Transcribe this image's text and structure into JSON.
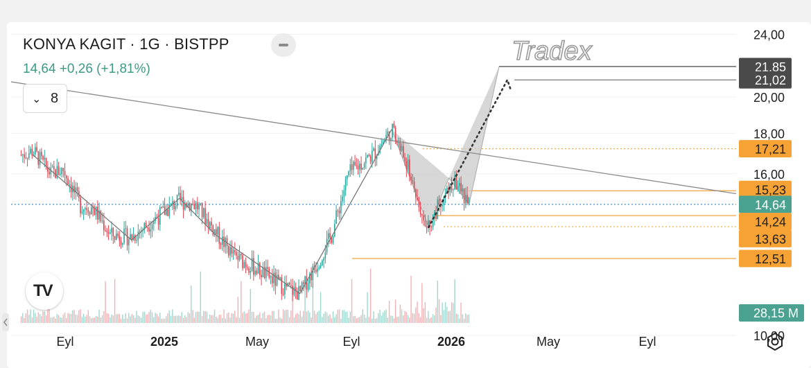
{
  "header": {
    "title": "KONYA KAGIT · 1G · BISTPP",
    "price_line": "14,64 +0,26 (+1,81%)",
    "indicator_count": "8"
  },
  "watermark": "Tradex",
  "icons": [
    "chevron-down-icon",
    "menu-icon",
    "tradingview-logo",
    "settings-icon",
    "collapse-arrow-icon"
  ],
  "colors": {
    "up": "#26a69a",
    "down": "#e0434f",
    "orange_label": "#f7a234",
    "dark_label": "#4a4a4a",
    "volume_label": "#4ca291",
    "trendline": "#8a8a8a"
  },
  "chart_data": {
    "type": "candlestick",
    "symbol": "KONYA KAGIT",
    "interval": "1G",
    "exchange": "BISTPP",
    "last_price": 14.64,
    "change": 0.26,
    "change_pct": 1.81,
    "y_scale": "log",
    "y_tick_labels": [
      "24,00",
      "20,00",
      "18,00",
      "16,00",
      "10,00"
    ],
    "y_ticks": [
      24,
      20,
      18,
      16,
      10
    ],
    "x_tick_labels": [
      "Eyl",
      "2025",
      "May",
      "Eyl",
      "2026",
      "May",
      "Eyl"
    ],
    "price_path": [
      [
        "2024-08-01",
        16.9
      ],
      [
        "2024-08-15",
        17.1
      ],
      [
        "2024-09-05",
        16.0
      ],
      [
        "2024-09-20",
        16.2
      ],
      [
        "2024-10-10",
        14.6
      ],
      [
        "2024-10-25",
        14.5
      ],
      [
        "2024-11-15",
        13.4
      ],
      [
        "2024-12-10",
        13.3
      ],
      [
        "2025-01-05",
        14.0
      ],
      [
        "2025-02-05",
        14.8
      ],
      [
        "2025-02-25",
        14.6
      ],
      [
        "2025-03-20",
        13.5
      ],
      [
        "2025-04-10",
        12.6
      ],
      [
        "2025-05-10",
        12.1
      ],
      [
        "2025-06-10",
        11.5
      ],
      [
        "2025-06-28",
        11.3
      ],
      [
        "2025-07-20",
        12.4
      ],
      [
        "2025-08-05",
        13.4
      ],
      [
        "2025-08-25",
        16.0
      ],
      [
        "2025-09-25",
        17.0
      ],
      [
        "2025-10-15",
        18.2
      ],
      [
        "2025-11-01",
        16.6
      ],
      [
        "2025-11-15",
        14.8
      ],
      [
        "2025-11-28",
        13.7
      ],
      [
        "2025-12-15",
        15.0
      ],
      [
        "2025-12-30",
        15.6
      ],
      [
        "2026-01-15",
        14.64
      ]
    ],
    "volume_last": "28,15 M",
    "price_labels": [
      {
        "value": 21.85,
        "text": "21,85",
        "style": "dark"
      },
      {
        "value": 21.02,
        "text": "21,02",
        "style": "dark"
      },
      {
        "value": 17.21,
        "text": "17,21",
        "style": "orange"
      },
      {
        "value": 15.23,
        "text": "15,23",
        "style": "orange"
      },
      {
        "value": 14.64,
        "text": "14,64",
        "style": "last"
      },
      {
        "value": 14.24,
        "text": "14,24",
        "style": "orange"
      },
      {
        "value": 13.63,
        "text": "13,63",
        "style": "orange"
      },
      {
        "value": 12.51,
        "text": "12,51",
        "style": "orange"
      }
    ],
    "trendline": {
      "from": [
        "2024-07-20",
        20.9
      ],
      "to": [
        "2026-12-15",
        15.1
      ]
    },
    "harmonic_pattern": {
      "X": [
        "2025-06-28",
        11.3
      ],
      "A": [
        "2025-10-15",
        18.2
      ],
      "B": [
        "2025-11-28",
        13.7
      ],
      "C": [
        "2025-12-22",
        15.8
      ],
      "D": [
        "2026-01-15",
        14.64
      ],
      "target": [
        "2026-03-01",
        21.85
      ]
    },
    "projection_path": [
      [
        "2025-11-28",
        13.7
      ],
      [
        "2026-03-12",
        21.02
      ],
      [
        "2026-03-20",
        20.4
      ]
    ]
  }
}
